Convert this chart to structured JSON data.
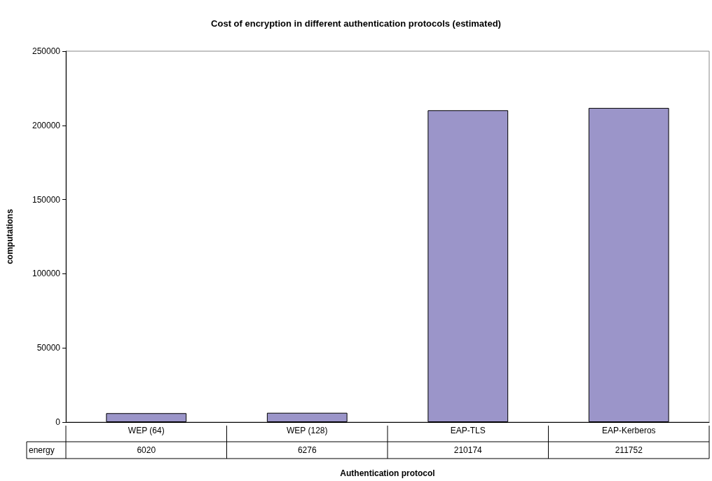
{
  "chart_data": {
    "type": "bar",
    "title": "Cost of encryption in different authentication protocols (estimated)",
    "xlabel": "Authentication protocol",
    "ylabel": "computations",
    "categories": [
      "WEP (64)",
      "WEP (128)",
      "EAP-TLS",
      "EAP-Kerberos"
    ],
    "series": [
      {
        "name": "energy",
        "color": "#9b95c9",
        "values": [
          6020,
          6276,
          210174,
          211752
        ]
      }
    ],
    "ylim": [
      0,
      250000
    ],
    "yticks": [
      0,
      50000,
      100000,
      150000,
      200000,
      250000
    ],
    "grid": false,
    "legend": "bottom left",
    "data_labels": true
  }
}
